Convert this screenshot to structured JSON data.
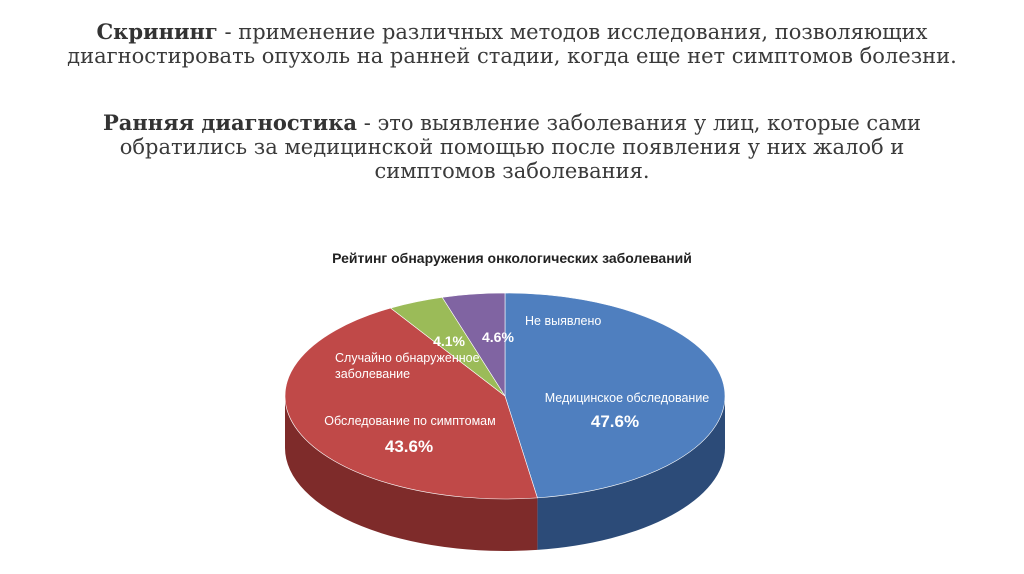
{
  "text": {
    "screening_term": "Скрининг",
    "screening_def": " - применение различных методов исследования, позволяющих диагностировать опухоль на ранней стадии, когда еще нет симптомов болезни.",
    "early_term": "Ранняя диагностика",
    "early_def": " - это выявление заболевания у лиц, которые сами обратились за медицинской помощью после появления у них жалоб и симптомов заболевания."
  },
  "chart_data": {
    "type": "pie",
    "title": "Рейтинг обнаружения онкологических заболеваний",
    "slices": [
      {
        "name": "Медицинское обследование",
        "value": 47.6,
        "label": "47.6%",
        "color": "#4f7fbf",
        "side": "#2c4b78"
      },
      {
        "name": "Обследование по симптомам",
        "value": 43.6,
        "label": "43.6%",
        "color": "#c04948",
        "side": "#7e2b2a"
      },
      {
        "name": "Случайно обнаруженное заболевание",
        "value": 4.1,
        "label": "4.1%",
        "color": "#9bbb58",
        "side": "#6a8a33"
      },
      {
        "name": "Не выявлено",
        "value": 4.6,
        "label": "4.6%",
        "color": "#8064a2",
        "side": "#54416e"
      }
    ],
    "legend": "none"
  }
}
